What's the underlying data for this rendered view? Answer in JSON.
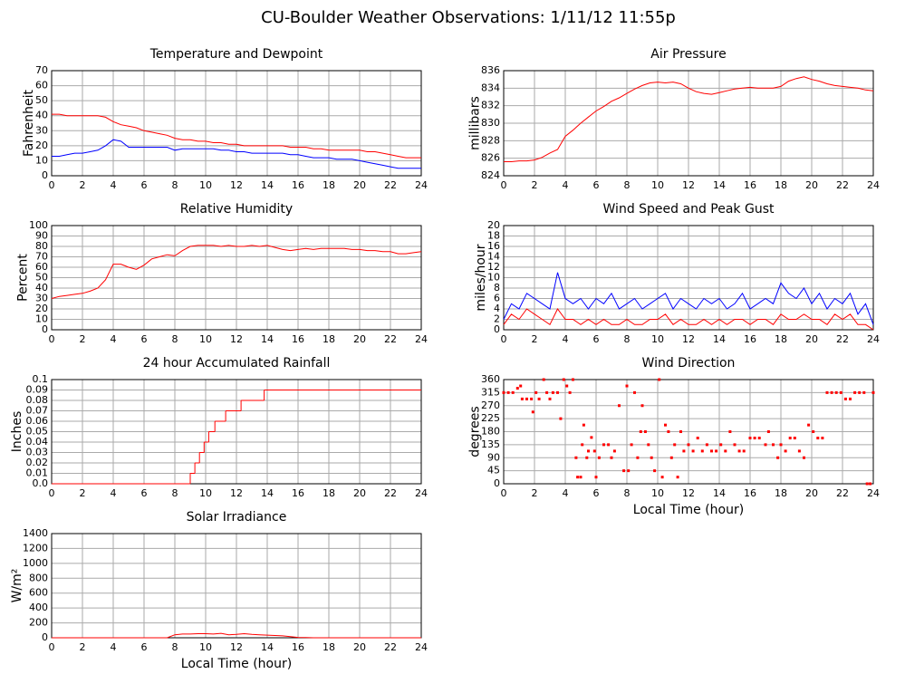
{
  "title": "CU-Boulder Weather Observations: 1/11/12 11:55p",
  "chart_data": [
    {
      "type": "line",
      "title": "Temperature and Dewpoint",
      "ylabel": "Fahrenheit",
      "x": [
        0,
        0.5,
        1,
        1.5,
        2,
        2.5,
        3,
        3.5,
        4,
        4.5,
        5,
        5.5,
        6,
        6.5,
        7,
        7.5,
        8,
        8.5,
        9,
        9.5,
        10,
        10.5,
        11,
        11.5,
        12,
        12.5,
        13,
        13.5,
        14,
        14.5,
        15,
        15.5,
        16,
        16.5,
        17,
        17.5,
        18,
        18.5,
        19,
        19.5,
        20,
        20.5,
        21,
        21.5,
        22,
        22.5,
        23,
        23.5,
        24
      ],
      "series": [
        {
          "color": "#ff0000",
          "values": [
            41,
            41,
            40,
            40,
            40,
            40,
            40,
            39,
            36,
            34,
            33,
            32,
            30,
            29,
            28,
            27,
            25,
            24,
            24,
            23,
            23,
            22,
            22,
            21,
            21,
            20,
            20,
            20,
            20,
            20,
            20,
            19,
            19,
            19,
            18,
            18,
            17,
            17,
            17,
            17,
            17,
            16,
            16,
            15,
            14,
            13,
            12,
            12,
            12
          ]
        },
        {
          "color": "#0000ff",
          "values": [
            13,
            13,
            14,
            15,
            15,
            16,
            17,
            20,
            24,
            23,
            19,
            19,
            19,
            19,
            19,
            19,
            17,
            18,
            18,
            18,
            18,
            18,
            17,
            17,
            16,
            16,
            15,
            15,
            15,
            15,
            15,
            14,
            14,
            13,
            12,
            12,
            12,
            11,
            11,
            11,
            10,
            9,
            8,
            7,
            6,
            5,
            5,
            5,
            5
          ]
        }
      ],
      "xlim": [
        0,
        24
      ],
      "xticks": [
        0,
        2,
        4,
        6,
        8,
        10,
        12,
        14,
        16,
        18,
        20,
        22,
        24
      ],
      "ylim": [
        0,
        70
      ],
      "yticks": [
        0,
        10,
        20,
        30,
        40,
        50,
        60,
        70
      ],
      "grid": true
    },
    {
      "type": "line",
      "title": "Air Pressure",
      "ylabel": "millibars",
      "x": [
        0,
        0.5,
        1,
        1.5,
        2,
        2.5,
        3,
        3.5,
        4,
        4.5,
        5,
        5.5,
        6,
        6.5,
        7,
        7.5,
        8,
        8.5,
        9,
        9.5,
        10,
        10.5,
        11,
        11.5,
        12,
        12.5,
        13,
        13.5,
        14,
        14.5,
        15,
        15.5,
        16,
        16.5,
        17,
        17.5,
        18,
        18.5,
        19,
        19.5,
        20,
        20.5,
        21,
        21.5,
        22,
        22.5,
        23,
        23.5,
        24
      ],
      "series": [
        {
          "color": "#ff0000",
          "values": [
            825.6,
            825.6,
            825.7,
            825.7,
            825.8,
            826.1,
            826.6,
            827.0,
            828.5,
            829.2,
            830.0,
            830.7,
            831.4,
            831.9,
            832.5,
            832.9,
            833.4,
            833.9,
            834.3,
            834.6,
            834.7,
            834.6,
            834.7,
            834.5,
            834.0,
            833.6,
            833.4,
            833.3,
            833.5,
            833.7,
            833.9,
            834.0,
            834.1,
            834.0,
            834.0,
            834.0,
            834.2,
            834.8,
            835.1,
            835.3,
            835.0,
            834.8,
            834.5,
            834.3,
            834.2,
            834.1,
            834.0,
            833.8,
            833.7
          ]
        }
      ],
      "xlim": [
        0,
        24
      ],
      "xticks": [
        0,
        2,
        4,
        6,
        8,
        10,
        12,
        14,
        16,
        18,
        20,
        22,
        24
      ],
      "ylim": [
        824,
        836
      ],
      "yticks": [
        824,
        826,
        828,
        830,
        832,
        834,
        836
      ],
      "grid": true
    },
    {
      "type": "line",
      "title": "Relative Humidity",
      "ylabel": "Percent",
      "x": [
        0,
        0.5,
        1,
        1.5,
        2,
        2.5,
        3,
        3.5,
        4,
        4.5,
        5,
        5.5,
        6,
        6.5,
        7,
        7.5,
        8,
        8.5,
        9,
        9.5,
        10,
        10.5,
        11,
        11.5,
        12,
        12.5,
        13,
        13.5,
        14,
        14.5,
        15,
        15.5,
        16,
        16.5,
        17,
        17.5,
        18,
        18.5,
        19,
        19.5,
        20,
        20.5,
        21,
        21.5,
        22,
        22.5,
        23,
        23.5,
        24
      ],
      "series": [
        {
          "color": "#ff0000",
          "values": [
            30,
            32,
            33,
            34,
            35,
            37,
            40,
            48,
            63,
            63,
            60,
            58,
            62,
            68,
            70,
            72,
            71,
            76,
            80,
            81,
            81,
            81,
            80,
            81,
            80,
            80,
            81,
            80,
            81,
            79,
            77,
            76,
            77,
            78,
            77,
            78,
            78,
            78,
            78,
            77,
            77,
            76,
            76,
            75,
            75,
            73,
            73,
            74,
            75
          ]
        }
      ],
      "xlim": [
        0,
        24
      ],
      "xticks": [
        0,
        2,
        4,
        6,
        8,
        10,
        12,
        14,
        16,
        18,
        20,
        22,
        24
      ],
      "ylim": [
        0,
        100
      ],
      "yticks": [
        0,
        10,
        20,
        30,
        40,
        50,
        60,
        70,
        80,
        90,
        100
      ],
      "grid": true
    },
    {
      "type": "line",
      "title": "Wind Speed and Peak Gust",
      "ylabel": "miles/hour",
      "x": [
        0,
        0.5,
        1,
        1.5,
        2,
        2.5,
        3,
        3.5,
        4,
        4.5,
        5,
        5.5,
        6,
        6.5,
        7,
        7.5,
        8,
        8.5,
        9,
        9.5,
        10,
        10.5,
        11,
        11.5,
        12,
        12.5,
        13,
        13.5,
        14,
        14.5,
        15,
        15.5,
        16,
        16.5,
        17,
        17.5,
        18,
        18.5,
        19,
        19.5,
        20,
        20.5,
        21,
        21.5,
        22,
        22.5,
        23,
        23.5,
        24
      ],
      "series": [
        {
          "color": "#0000ff",
          "values": [
            2,
            5,
            4,
            7,
            6,
            5,
            4,
            11,
            6,
            5,
            6,
            4,
            6,
            5,
            7,
            4,
            5,
            6,
            4,
            5,
            6,
            7,
            4,
            6,
            5,
            4,
            6,
            5,
            6,
            4,
            5,
            7,
            4,
            5,
            6,
            5,
            9,
            7,
            6,
            8,
            5,
            7,
            4,
            6,
            5,
            7,
            3,
            5,
            1
          ]
        },
        {
          "color": "#ff0000",
          "values": [
            1,
            3,
            2,
            4,
            3,
            2,
            1,
            4,
            2,
            2,
            1,
            2,
            1,
            2,
            1,
            1,
            2,
            1,
            1,
            2,
            2,
            3,
            1,
            2,
            1,
            1,
            2,
            1,
            2,
            1,
            2,
            2,
            1,
            2,
            2,
            1,
            3,
            2,
            2,
            3,
            2,
            2,
            1,
            3,
            2,
            3,
            1,
            1,
            0
          ]
        }
      ],
      "xlim": [
        0,
        24
      ],
      "xticks": [
        0,
        2,
        4,
        6,
        8,
        10,
        12,
        14,
        16,
        18,
        20,
        22,
        24
      ],
      "ylim": [
        0,
        20
      ],
      "yticks": [
        0,
        2,
        4,
        6,
        8,
        10,
        12,
        14,
        16,
        18,
        20
      ],
      "grid": true
    },
    {
      "type": "step",
      "title": "24 hour Accumulated Rainfall",
      "ylabel": "Inches",
      "x": [
        0,
        9.0,
        9.3,
        9.6,
        9.9,
        10.2,
        10.6,
        11.3,
        12.3,
        13.8
      ],
      "series": [
        {
          "color": "#ff0000",
          "values": [
            0,
            0.01,
            0.02,
            0.03,
            0.04,
            0.05,
            0.06,
            0.07,
            0.08,
            0.09
          ]
        }
      ],
      "xlim": [
        0,
        24
      ],
      "xticks": [
        0,
        2,
        4,
        6,
        8,
        10,
        12,
        14,
        16,
        18,
        20,
        22,
        24
      ],
      "ylim": [
        0,
        0.1
      ],
      "yticks": [
        {
          "value": 0,
          "label": "0.0"
        },
        0.01,
        0.02,
        0.03,
        0.04,
        0.05,
        0.06,
        0.07,
        0.08,
        0.09,
        0.1
      ],
      "grid": true
    },
    {
      "type": "scatter",
      "title": "Wind Direction",
      "ylabel": "degrees",
      "xlabel": "Local Time (hour)",
      "color": "#ff0000",
      "x": [
        0,
        0.3,
        0.6,
        0.9,
        1.1,
        1.2,
        1.5,
        1.8,
        1.9,
        2.1,
        2.3,
        2.6,
        2.8,
        3.0,
        3.2,
        3.5,
        3.7,
        3.9,
        4.1,
        4.3,
        4.5,
        4.7,
        4.8,
        5.0,
        5.1,
        5.2,
        5.4,
        5.5,
        5.7,
        5.9,
        6.0,
        6.2,
        6.5,
        6.8,
        7.0,
        7.2,
        7.5,
        7.8,
        8.0,
        8.1,
        8.3,
        8.5,
        8.7,
        8.9,
        9.0,
        9.2,
        9.4,
        9.6,
        9.8,
        10.1,
        10.3,
        10.5,
        10.7,
        10.9,
        11.1,
        11.3,
        11.5,
        11.7,
        12.0,
        12.3,
        12.6,
        12.9,
        13.2,
        13.5,
        13.8,
        14.1,
        14.4,
        14.7,
        15.0,
        15.3,
        15.6,
        16.0,
        16.3,
        16.6,
        17.0,
        17.2,
        17.5,
        17.8,
        18.0,
        18.3,
        18.6,
        18.9,
        19.2,
        19.5,
        19.8,
        20.1,
        20.4,
        20.7,
        21.0,
        21.3,
        21.6,
        21.9,
        22.2,
        22.5,
        22.8,
        23.1,
        23.4,
        23.6,
        23.8,
        24
      ],
      "values": [
        315,
        315,
        315,
        330,
        338,
        293,
        293,
        293,
        248,
        315,
        293,
        360,
        315,
        293,
        315,
        315,
        225,
        360,
        338,
        315,
        360,
        90,
        23,
        23,
        135,
        203,
        90,
        113,
        160,
        113,
        23,
        90,
        135,
        135,
        90,
        113,
        270,
        45,
        338,
        45,
        135,
        315,
        90,
        180,
        270,
        180,
        135,
        90,
        45,
        360,
        23,
        203,
        180,
        90,
        135,
        23,
        180,
        113,
        135,
        113,
        158,
        113,
        135,
        113,
        113,
        135,
        113,
        180,
        135,
        113,
        113,
        158,
        158,
        158,
        135,
        180,
        135,
        90,
        135,
        113,
        158,
        158,
        113,
        90,
        203,
        180,
        158,
        158,
        315,
        315,
        315,
        315,
        293,
        293,
        315,
        315,
        315,
        0,
        0,
        315
      ],
      "xlim": [
        0,
        24
      ],
      "xticks": [
        0,
        2,
        4,
        6,
        8,
        10,
        12,
        14,
        16,
        18,
        20,
        22,
        24
      ],
      "ylim": [
        0,
        360
      ],
      "yticks": [
        0,
        45,
        90,
        135,
        180,
        225,
        270,
        315,
        360
      ],
      "grid": true
    },
    {
      "type": "line",
      "title": "Solar Irradiance",
      "ylabel": "W/m²",
      "xlabel": "Local Time (hour)",
      "x": [
        0,
        0.5,
        1,
        1.5,
        2,
        2.5,
        3,
        3.5,
        4,
        4.5,
        5,
        5.5,
        6,
        6.5,
        7,
        7.5,
        8,
        8.5,
        9,
        9.5,
        10,
        10.5,
        11,
        11.5,
        12,
        12.5,
        13,
        13.5,
        14,
        14.5,
        15,
        15.5,
        16,
        16.5,
        17,
        17.5,
        18,
        18.5,
        19,
        19.5,
        20,
        20.5,
        21,
        21.5,
        22,
        22.5,
        23,
        23.5,
        24
      ],
      "series": [
        {
          "color": "#ff0000",
          "values": [
            0,
            0,
            0,
            0,
            0,
            0,
            0,
            0,
            0,
            0,
            0,
            0,
            0,
            0,
            0,
            0,
            40,
            50,
            50,
            55,
            55,
            50,
            60,
            40,
            45,
            55,
            45,
            40,
            35,
            30,
            25,
            15,
            5,
            2,
            0,
            0,
            0,
            0,
            0,
            0,
            0,
            0,
            0,
            0,
            0,
            0,
            0,
            0,
            0
          ]
        }
      ],
      "xlim": [
        0,
        24
      ],
      "xticks": [
        0,
        2,
        4,
        6,
        8,
        10,
        12,
        14,
        16,
        18,
        20,
        22,
        24
      ],
      "ylim": [
        0,
        1400
      ],
      "yticks": [
        0,
        200,
        400,
        600,
        800,
        1000,
        1200,
        1400
      ],
      "grid": true
    }
  ]
}
